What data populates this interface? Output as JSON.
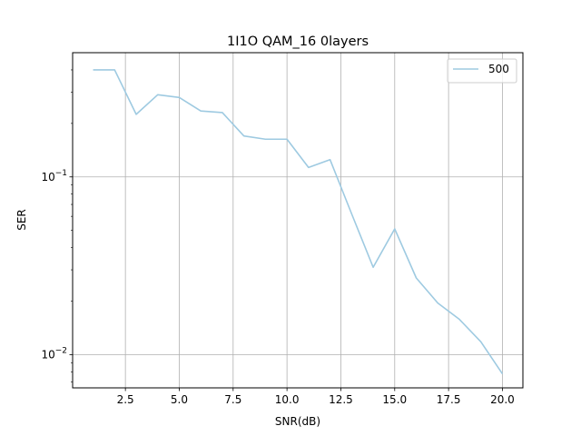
{
  "chart_data": {
    "type": "line",
    "title": "1I1O QAM_16 0layers",
    "xlabel": "SNR(dB)",
    "ylabel": "SER",
    "x_scale": "linear",
    "y_scale": "log",
    "xlim": [
      0.05,
      20.95
    ],
    "ylim": [
      0.0065,
      0.5
    ],
    "grid": true,
    "legend_position": "top-right",
    "x_ticks": [
      {
        "value": 2.5,
        "label": "2.5"
      },
      {
        "value": 5.0,
        "label": "5.0"
      },
      {
        "value": 7.5,
        "label": "7.5"
      },
      {
        "value": 10.0,
        "label": "10.0"
      },
      {
        "value": 12.5,
        "label": "12.5"
      },
      {
        "value": 15.0,
        "label": "15.0"
      },
      {
        "value": 17.5,
        "label": "17.5"
      },
      {
        "value": 20.0,
        "label": "20.0"
      }
    ],
    "y_ticks": [
      {
        "value": 0.1,
        "label_base": "10",
        "label_exp": "−1"
      },
      {
        "value": 0.01,
        "label_base": "10",
        "label_exp": "−2"
      }
    ],
    "series": [
      {
        "name": "500",
        "color": "#9ecae1",
        "x": [
          1,
          2,
          3,
          4,
          5,
          6,
          7,
          8,
          9,
          10,
          11,
          12,
          13,
          14,
          15,
          16,
          17,
          18,
          19,
          20
        ],
        "y": [
          0.4,
          0.4,
          0.225,
          0.29,
          0.28,
          0.235,
          0.23,
          0.17,
          0.163,
          0.163,
          0.113,
          0.125,
          0.062,
          0.031,
          0.051,
          0.027,
          0.0195,
          0.0158,
          0.0118,
          0.0078
        ]
      }
    ]
  }
}
